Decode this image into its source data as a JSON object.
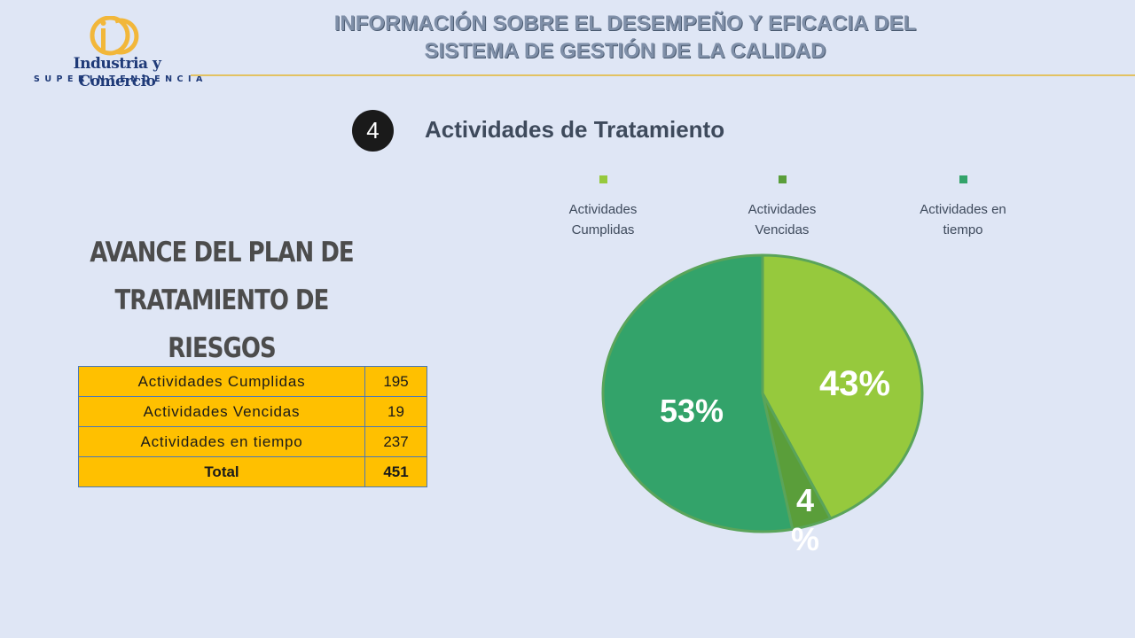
{
  "header": {
    "org_name": "Industria y Comercio",
    "org_sub": "SUPERINTENDENCIA",
    "title_line1": "INFORMACIÓN SOBRE EL DESEMPEÑO Y EFICACIA DEL",
    "title_line2": "SISTEMA DE GESTIÓN DE LA  CALIDAD"
  },
  "section": {
    "number": "4",
    "title": "Actividades de Tratamiento"
  },
  "plan_title": {
    "line1": "Avance del plan de",
    "line2": "tratamiento de riesgos"
  },
  "table": {
    "rows": [
      {
        "label": "Actividades Cumplidas",
        "value": "195"
      },
      {
        "label": "Actividades Vencidas",
        "value": "19"
      },
      {
        "label": "Actividades en tiempo",
        "value": "237"
      }
    ],
    "total_label": "Total",
    "total_value": "451"
  },
  "colors": {
    "cumplidas": "#96c93d",
    "vencidas": "#5a9e3a",
    "en_tiempo": "#33a36a",
    "slice_stroke": "#5aa45a",
    "table_bg": "#ffc000",
    "background": "#dfe6f5"
  },
  "chart_data": {
    "type": "pie",
    "title": "",
    "legend_position": "top",
    "slices": [
      {
        "name": "Actividades Cumplidas",
        "label": "43%",
        "value": 43
      },
      {
        "name": "Actividades Vencidas",
        "label": "4 %",
        "value": 4
      },
      {
        "name": "Actividades en tiempo",
        "label": "53%",
        "value": 53
      }
    ],
    "legend": [
      {
        "line1": "Actividades",
        "line2": "Cumplidas"
      },
      {
        "line1": "Actividades",
        "line2": "Vencidas"
      },
      {
        "line1": "Actividades en",
        "line2": "tiempo"
      }
    ]
  }
}
